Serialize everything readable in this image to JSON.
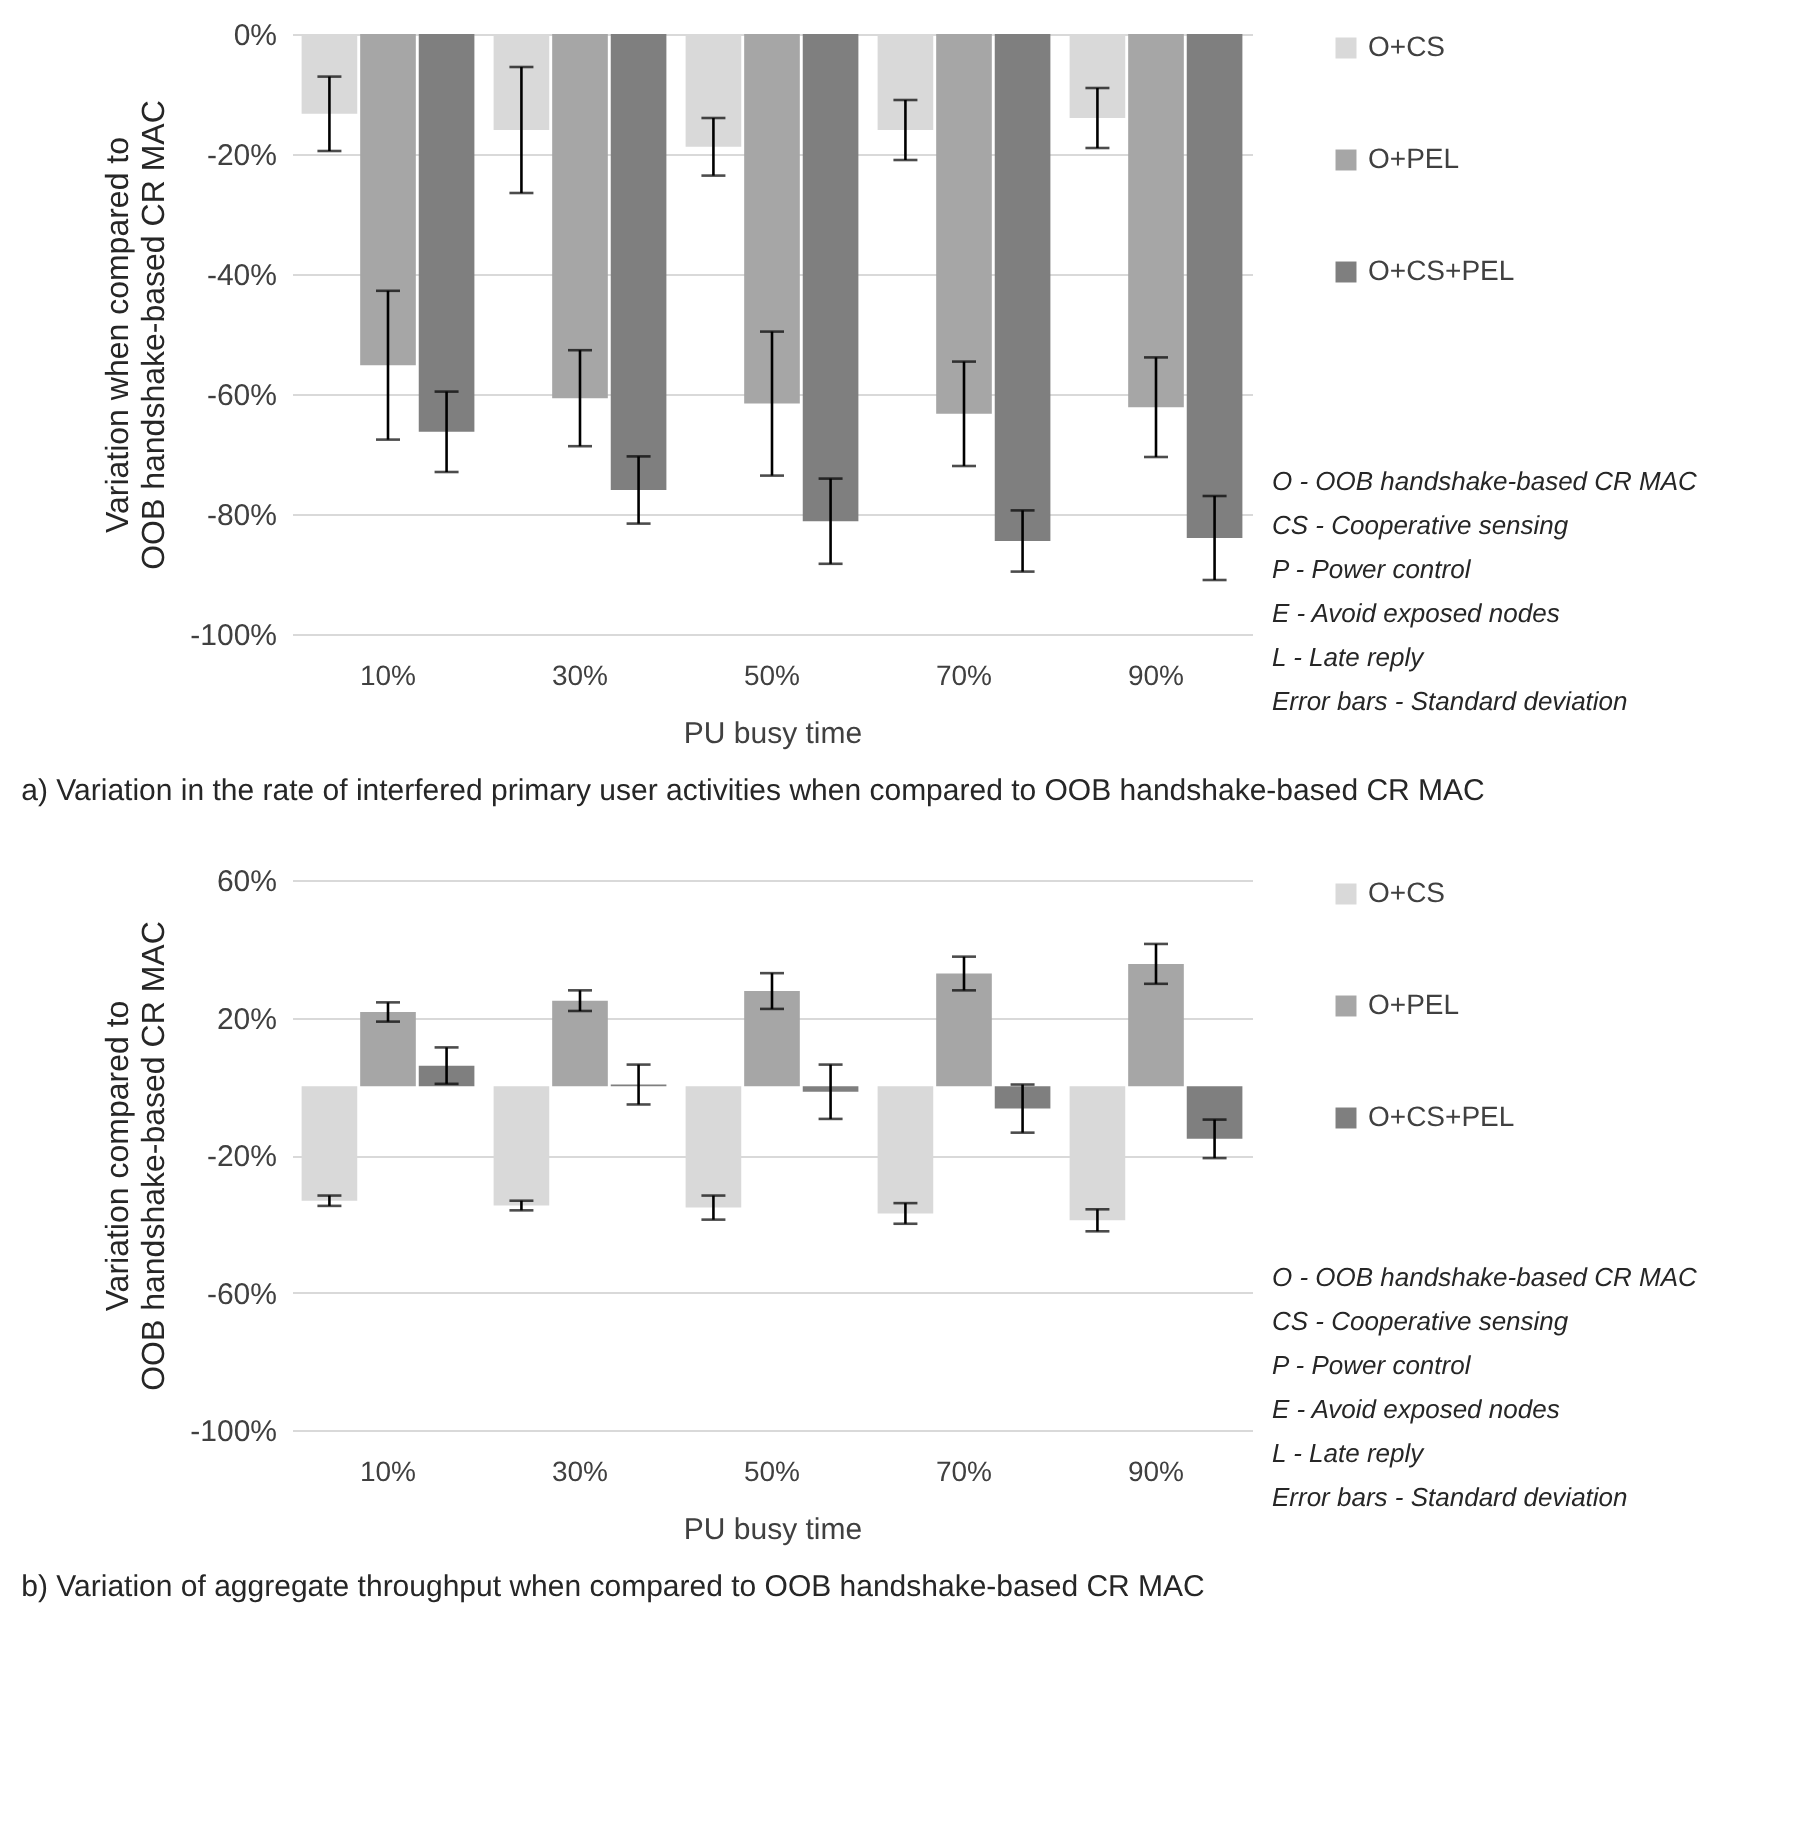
{
  "chart_data": [
    {
      "type": "bar",
      "title": "a) Variation in the rate of interfered primary user activities when compared to OOB handshake-based CR MAC",
      "xlabel": "PU busy time",
      "ylabel": "Variation when compared to\nOOB handshake-based CR MAC",
      "categories": [
        "10%",
        "30%",
        "50%",
        "70%",
        "90%"
      ],
      "series": [
        {
          "name": "O+CS",
          "color": "#d9d9d9",
          "values": [
            -13.3,
            -16,
            -18.8,
            -16,
            -14
          ],
          "errors": [
            6.2,
            10.5,
            4.8,
            5,
            5
          ]
        },
        {
          "name": "O+PEL",
          "color": "#a6a6a6",
          "values": [
            -55.2,
            -60.7,
            -61.6,
            -63.3,
            -62.2
          ],
          "errors": [
            12.4,
            8,
            12,
            8.7,
            8.3
          ]
        },
        {
          "name": "O+CS+PEL",
          "color": "#7f7f7f",
          "values": [
            -66.3,
            -76,
            -81.2,
            -84.5,
            -84
          ],
          "errors": [
            6.7,
            5.6,
            7.1,
            5.1,
            7
          ]
        }
      ],
      "ylim": [
        -100,
        0
      ],
      "yticks": [
        {
          "value": -100,
          "label": "-100%"
        },
        {
          "value": -80,
          "label": "-80%"
        },
        {
          "value": -60,
          "label": "-60%"
        },
        {
          "value": -40,
          "label": "-40%"
        },
        {
          "value": -20,
          "label": "-20%"
        },
        {
          "value": 0,
          "label": "0%"
        }
      ],
      "grid": "y",
      "legend": "right",
      "annotations": [
        "O - OOB handshake-based CR MAC",
        "CS - Cooperative sensing",
        "P - Power control",
        "E - Avoid exposed nodes",
        "L - Late reply",
        "Error bars - Standard deviation"
      ]
    },
    {
      "type": "bar",
      "title": "b) Variation of aggregate throughput when compared to OOB handshake-based CR MAC",
      "xlabel": "PU busy time",
      "ylabel": "Variation compared to\nOOB handshake-based CR MAC",
      "categories": [
        "10%",
        "30%",
        "50%",
        "70%",
        "90%"
      ],
      "series": [
        {
          "name": "O+CS",
          "color": "#d9d9d9",
          "values": [
            -33.3,
            -34.7,
            -35.3,
            -37,
            -39
          ],
          "errors": [
            1.5,
            1.4,
            3.5,
            3,
            3.2
          ]
        },
        {
          "name": "O+PEL",
          "color": "#a6a6a6",
          "values": [
            21.6,
            24.9,
            27.7,
            32.8,
            35.6
          ],
          "errors": [
            2.8,
            3,
            5.2,
            4.9,
            5.8
          ]
        },
        {
          "name": "O+CS+PEL",
          "color": "#7f7f7f",
          "values": [
            6,
            0.5,
            -1.6,
            -6.5,
            -15.3
          ],
          "errors": [
            5.3,
            5.8,
            7.9,
            7,
            5.6
          ]
        }
      ],
      "ylim": [
        -100,
        60
      ],
      "yticks": [
        {
          "value": -100,
          "label": "-100%"
        },
        {
          "value": -60,
          "label": "-60%"
        },
        {
          "value": -20,
          "label": "-20%"
        },
        {
          "value": 20,
          "label": "20%"
        },
        {
          "value": 60,
          "label": "60%"
        }
      ],
      "grid": "y",
      "legend": "right",
      "annotations": [
        "O - OOB handshake-based CR MAC",
        "CS - Cooperative sensing",
        "P - Power control",
        "E - Avoid exposed nodes",
        "L - Late reply",
        "Error bars - Standard deviation"
      ]
    }
  ]
}
